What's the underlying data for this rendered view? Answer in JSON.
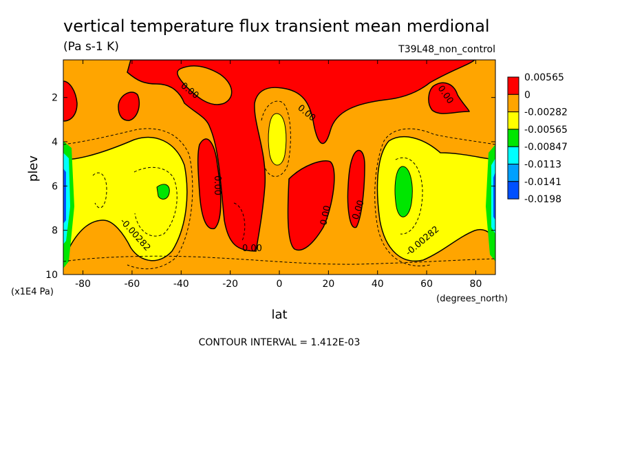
{
  "chart_data": {
    "type": "heatmap",
    "subtype": "filled contour",
    "title": "vertical temperature flux transient mean merdional",
    "units": "(Pa s-1 K)",
    "dataset": "T39L48_non_control",
    "xlabel": "lat",
    "x_units": "(degrees_north)",
    "ylabel": "plev",
    "y_units": "(x1E4 Pa)",
    "xlim": [
      -88,
      88
    ],
    "ylim": [
      10,
      0.3
    ],
    "y_inverted": true,
    "xticks": [
      -80,
      -60,
      -40,
      -20,
      0,
      20,
      40,
      60,
      80
    ],
    "yticks": [
      2,
      4,
      6,
      8,
      10
    ],
    "colorbar": {
      "labels": [
        "0.00565",
        "0",
        "-0.00282",
        "-0.00565",
        "-0.00847",
        "-0.0113",
        "-0.0141",
        "-0.0198"
      ],
      "colors": [
        "#ff0000",
        "#ffa500",
        "#ffff00",
        "#00e600",
        "#00ffff",
        "#00a0ff",
        "#0050ff"
      ]
    },
    "contour_labels": [
      {
        "text": "0.00",
        "lat": -42,
        "plev": 1.3
      },
      {
        "text": "0.00",
        "lat": 66,
        "plev": 1.3
      },
      {
        "text": "0.00",
        "lat": 11,
        "plev": 2.4
      },
      {
        "text": "0.00",
        "lat": -24,
        "plev": 6.2
      },
      {
        "text": "0.00",
        "lat": 20,
        "plev": 7.7
      },
      {
        "text": "0.00",
        "lat": 33,
        "plev": 7.3
      },
      {
        "text": "0.00",
        "lat": -10,
        "plev": 8.9
      },
      {
        "text": "-0.00282",
        "lat": -62,
        "plev": 8.5
      },
      {
        "text": "-0.00282",
        "lat": 56,
        "plev": 8.4
      }
    ],
    "footer": "CONTOUR INTERVAL = 1.412E-03"
  }
}
